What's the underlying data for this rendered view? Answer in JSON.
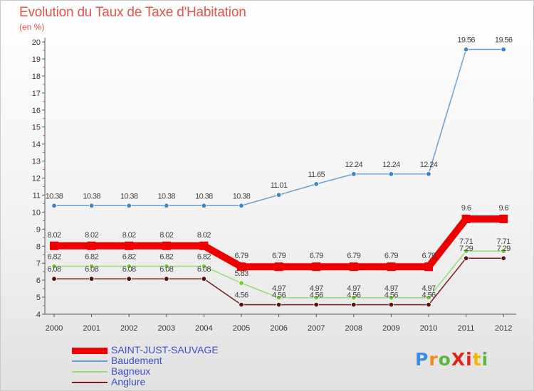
{
  "title": "Evolution du Taux de Taxe d'Habitation",
  "unit_label": "(en %)",
  "chart_data": {
    "type": "line",
    "title": "Evolution du Taux de Taxe d'Habitation",
    "ylabel": "(en %)",
    "xlabel": "",
    "ylim": [
      4,
      20
    ],
    "yticks": [
      4,
      5,
      6,
      7,
      8,
      9,
      10,
      11,
      12,
      13,
      14,
      15,
      16,
      17,
      18,
      19,
      20
    ],
    "x": [
      2000,
      2001,
      2002,
      2003,
      2004,
      2005,
      2006,
      2007,
      2008,
      2009,
      2010,
      2011,
      2012
    ],
    "series": [
      {
        "name": "Anglure",
        "color": "#7a1e1e",
        "marker": "#5a0f0f",
        "values": [
          6.08,
          6.08,
          6.08,
          6.08,
          6.08,
          4.56,
          4.56,
          4.56,
          4.56,
          4.56,
          4.56,
          7.29,
          7.29
        ],
        "labels": [
          "6.08",
          "6.08",
          "6.08",
          "6.08",
          "6.08",
          "4.56",
          "4.56",
          "4.56",
          "4.56",
          "4.56",
          "4.56",
          "7.29",
          "7.29"
        ]
      },
      {
        "name": "Bagneux",
        "color": "#99dd77",
        "marker": "#77cc33",
        "values": [
          6.82,
          6.82,
          6.82,
          6.82,
          6.82,
          5.83,
          4.97,
          4.97,
          4.97,
          4.97,
          4.97,
          7.71,
          7.71
        ],
        "labels": [
          "6.82",
          "6.82",
          "6.82",
          "6.82",
          "6.82",
          "5.83",
          "4.97",
          "4.97",
          "4.97",
          "4.97",
          "4.97",
          "7.71",
          "7.71"
        ]
      },
      {
        "name": "Baudement",
        "color": "#6ca0d0",
        "marker": "#3d86c6",
        "values": [
          10.38,
          10.38,
          10.38,
          10.38,
          10.38,
          10.38,
          11.01,
          11.65,
          12.24,
          12.24,
          12.24,
          19.56,
          19.56
        ],
        "labels": [
          "10.38",
          "10.38",
          "10.38",
          "10.38",
          "10.38",
          "10.38",
          "11.01",
          "11.65",
          "12.24",
          "12.24",
          "12.24",
          "19.56",
          "19.56"
        ]
      },
      {
        "name": "SAINT-JUST-SAUVAGE",
        "color": "#ee0000",
        "marker": "#ee0000",
        "values": [
          8.02,
          8.02,
          8.02,
          8.02,
          8.02,
          6.79,
          6.79,
          6.79,
          6.79,
          6.79,
          6.79,
          9.6,
          9.6
        ],
        "labels": [
          "8.02",
          "8.02",
          "8.02",
          "8.02",
          "8.02",
          "6.79",
          "6.79",
          "6.79",
          "6.79",
          "6.79",
          "6.79",
          "9.6",
          "9.6"
        ]
      }
    ],
    "legend": [
      {
        "name": "SAINT-JUST-SAUVAGE",
        "color": "#ee0000"
      },
      {
        "name": "Baudement",
        "color": "#6ca0d0"
      },
      {
        "name": "Bagneux",
        "color": "#99dd77"
      },
      {
        "name": "Anglure",
        "color": "#7a1e1e"
      }
    ],
    "legend_position": "bottom-left",
    "grid": false
  },
  "logo": {
    "text": "ProXiti",
    "letter_colors": [
      "#3a8de0",
      "#ee8a1c",
      "#5cb83a",
      "#e2231a",
      "#e2231a",
      "#f2b705",
      "#5cb83a"
    ]
  }
}
